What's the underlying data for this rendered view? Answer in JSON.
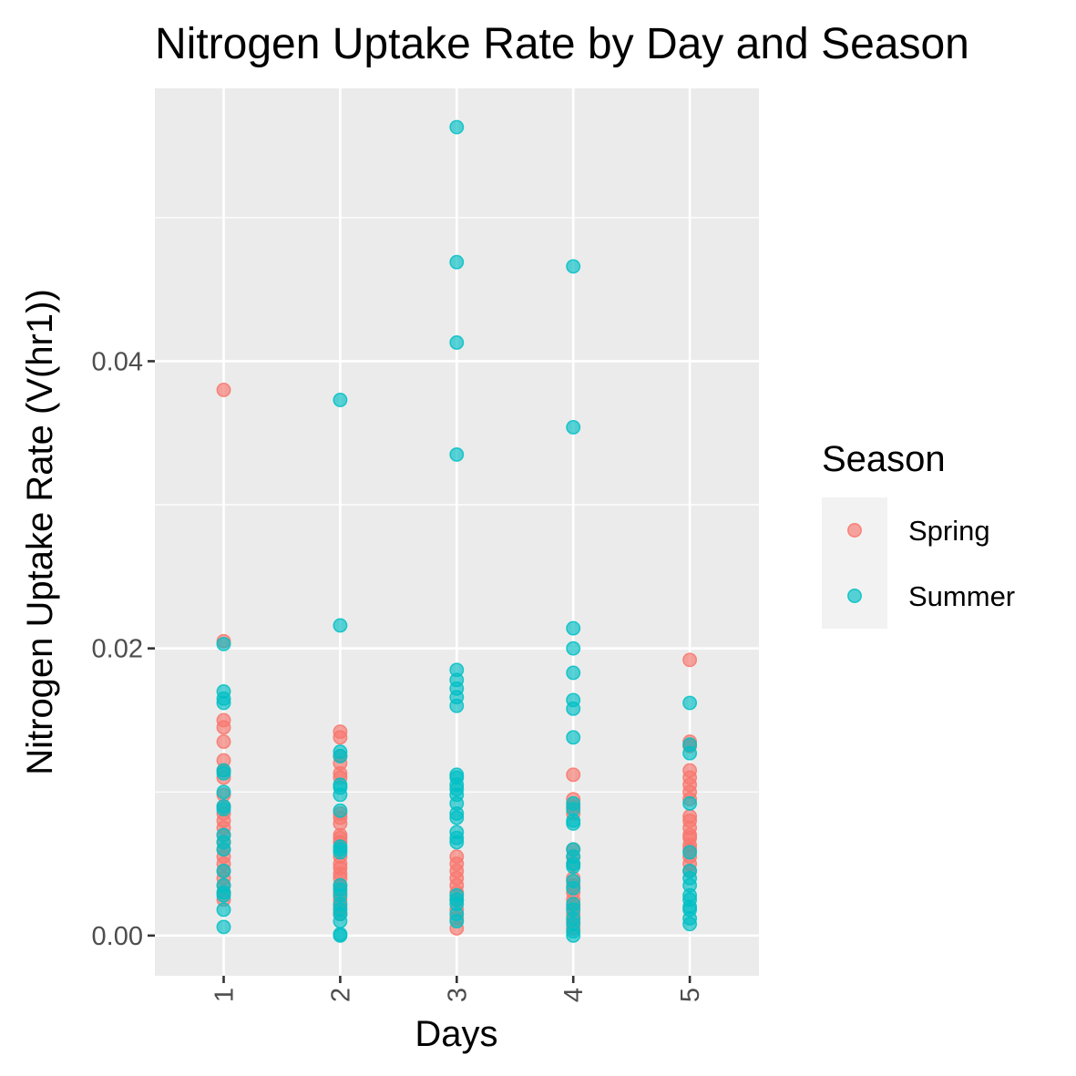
{
  "chart_data": {
    "type": "scatter",
    "title": "Nitrogen Uptake Rate by Day and Season",
    "xlabel": "Days",
    "ylabel": "Nitrogen Uptake Rate (V(hr1))",
    "categories": [
      "1",
      "2",
      "3",
      "4",
      "5"
    ],
    "yticks": [
      "0.00",
      "0.02",
      "0.04"
    ],
    "ylim": [
      -0.0028,
      0.059
    ],
    "grid": true,
    "legend": {
      "title": "Season",
      "position": "right",
      "entries": [
        "Spring",
        "Summer"
      ]
    },
    "series": [
      {
        "name": "Spring",
        "color": "#F8766D",
        "points": [
          [
            1,
            0.038
          ],
          [
            1,
            0.0205
          ],
          [
            1,
            0.015
          ],
          [
            1,
            0.0145
          ],
          [
            1,
            0.0135
          ],
          [
            1,
            0.0122
          ],
          [
            1,
            0.0115
          ],
          [
            1,
            0.011
          ],
          [
            1,
            0.0098
          ],
          [
            1,
            0.009
          ],
          [
            1,
            0.0085
          ],
          [
            1,
            0.008
          ],
          [
            1,
            0.0075
          ],
          [
            1,
            0.007
          ],
          [
            1,
            0.0065
          ],
          [
            1,
            0.006
          ],
          [
            1,
            0.0055
          ],
          [
            1,
            0.005
          ],
          [
            1,
            0.0045
          ],
          [
            1,
            0.004
          ],
          [
            1,
            0.0035
          ],
          [
            1,
            0.003
          ],
          [
            1,
            0.0025
          ],
          [
            2,
            0.0142
          ],
          [
            2,
            0.0138
          ],
          [
            2,
            0.0125
          ],
          [
            2,
            0.012
          ],
          [
            2,
            0.0113
          ],
          [
            2,
            0.011
          ],
          [
            2,
            0.0085
          ],
          [
            2,
            0.0082
          ],
          [
            2,
            0.0078
          ],
          [
            2,
            0.007
          ],
          [
            2,
            0.0068
          ],
          [
            2,
            0.0065
          ],
          [
            2,
            0.0055
          ],
          [
            2,
            0.005
          ],
          [
            2,
            0.0047
          ],
          [
            2,
            0.0043
          ],
          [
            2,
            0.004
          ],
          [
            2,
            0.0035
          ],
          [
            2,
            0.003
          ],
          [
            2,
            0.0025
          ],
          [
            2,
            0.002
          ],
          [
            2,
            0.0015
          ],
          [
            3,
            0.0055
          ],
          [
            3,
            0.005
          ],
          [
            3,
            0.0045
          ],
          [
            3,
            0.004
          ],
          [
            3,
            0.0035
          ],
          [
            3,
            0.003
          ],
          [
            3,
            0.0025
          ],
          [
            3,
            0.0018
          ],
          [
            3,
            0.0012
          ],
          [
            3,
            0.0005
          ],
          [
            4,
            0.0112
          ],
          [
            4,
            0.0095
          ],
          [
            4,
            0.009
          ],
          [
            4,
            0.0085
          ],
          [
            4,
            0.006
          ],
          [
            4,
            0.0055
          ],
          [
            4,
            0.005
          ],
          [
            4,
            0.004
          ],
          [
            4,
            0.0035
          ],
          [
            4,
            0.003
          ],
          [
            4,
            0.0025
          ],
          [
            4,
            0.002
          ],
          [
            4,
            0.0015
          ],
          [
            4,
            0.001
          ],
          [
            4,
            0.0005
          ],
          [
            5,
            0.0192
          ],
          [
            5,
            0.0135
          ],
          [
            5,
            0.0132
          ],
          [
            5,
            0.0115
          ],
          [
            5,
            0.011
          ],
          [
            5,
            0.0105
          ],
          [
            5,
            0.01
          ],
          [
            5,
            0.0095
          ],
          [
            5,
            0.0083
          ],
          [
            5,
            0.008
          ],
          [
            5,
            0.0075
          ],
          [
            5,
            0.007
          ],
          [
            5,
            0.0068
          ],
          [
            5,
            0.0063
          ],
          [
            5,
            0.006
          ],
          [
            5,
            0.0055
          ],
          [
            5,
            0.005
          ],
          [
            5,
            0.0045
          ]
        ]
      },
      {
        "name": "Summer",
        "color": "#00BFC4",
        "points": [
          [
            1,
            0.0203
          ],
          [
            1,
            0.017
          ],
          [
            1,
            0.0165
          ],
          [
            1,
            0.0162
          ],
          [
            1,
            0.0115
          ],
          [
            1,
            0.0113
          ],
          [
            1,
            0.01
          ],
          [
            1,
            0.009
          ],
          [
            1,
            0.0088
          ],
          [
            1,
            0.007
          ],
          [
            1,
            0.0065
          ],
          [
            1,
            0.006
          ],
          [
            1,
            0.0045
          ],
          [
            1,
            0.0035
          ],
          [
            1,
            0.003
          ],
          [
            1,
            0.0028
          ],
          [
            1,
            0.0018
          ],
          [
            1,
            0.0006
          ],
          [
            2,
            0.0373
          ],
          [
            2,
            0.0216
          ],
          [
            2,
            0.0128
          ],
          [
            2,
            0.0125
          ],
          [
            2,
            0.0105
          ],
          [
            2,
            0.0103
          ],
          [
            2,
            0.0098
          ],
          [
            2,
            0.0087
          ],
          [
            2,
            0.0062
          ],
          [
            2,
            0.006
          ],
          [
            2,
            0.0058
          ],
          [
            2,
            0.0035
          ],
          [
            2,
            0.0032
          ],
          [
            2,
            0.0028
          ],
          [
            2,
            0.0022
          ],
          [
            2,
            0.0018
          ],
          [
            2,
            0.0015
          ],
          [
            2,
            0.001
          ],
          [
            2,
            0.0001
          ],
          [
            2,
            0.0
          ],
          [
            3,
            0.0563
          ],
          [
            3,
            0.0469
          ],
          [
            3,
            0.0413
          ],
          [
            3,
            0.0335
          ],
          [
            3,
            0.0185
          ],
          [
            3,
            0.0178
          ],
          [
            3,
            0.0172
          ],
          [
            3,
            0.0166
          ],
          [
            3,
            0.016
          ],
          [
            3,
            0.0112
          ],
          [
            3,
            0.011
          ],
          [
            3,
            0.0105
          ],
          [
            3,
            0.0102
          ],
          [
            3,
            0.0098
          ],
          [
            3,
            0.0092
          ],
          [
            3,
            0.0085
          ],
          [
            3,
            0.0082
          ],
          [
            3,
            0.0072
          ],
          [
            3,
            0.0068
          ],
          [
            3,
            0.0065
          ],
          [
            3,
            0.0028
          ],
          [
            3,
            0.0025
          ],
          [
            3,
            0.0022
          ],
          [
            3,
            0.0015
          ],
          [
            3,
            0.001
          ],
          [
            4,
            0.0466
          ],
          [
            4,
            0.0354
          ],
          [
            4,
            0.0214
          ],
          [
            4,
            0.02
          ],
          [
            4,
            0.0183
          ],
          [
            4,
            0.0164
          ],
          [
            4,
            0.0158
          ],
          [
            4,
            0.0138
          ],
          [
            4,
            0.0092
          ],
          [
            4,
            0.0088
          ],
          [
            4,
            0.008
          ],
          [
            4,
            0.0078
          ],
          [
            4,
            0.006
          ],
          [
            4,
            0.0055
          ],
          [
            4,
            0.005
          ],
          [
            4,
            0.0048
          ],
          [
            4,
            0.0038
          ],
          [
            4,
            0.0033
          ],
          [
            4,
            0.0022
          ],
          [
            4,
            0.0018
          ],
          [
            4,
            0.0012
          ],
          [
            4,
            0.0008
          ],
          [
            4,
            0.0003
          ],
          [
            4,
            0.0
          ],
          [
            5,
            0.0162
          ],
          [
            5,
            0.0133
          ],
          [
            5,
            0.0127
          ],
          [
            5,
            0.0092
          ],
          [
            5,
            0.0058
          ],
          [
            5,
            0.0045
          ],
          [
            5,
            0.004
          ],
          [
            5,
            0.0035
          ],
          [
            5,
            0.0028
          ],
          [
            5,
            0.0025
          ],
          [
            5,
            0.002
          ],
          [
            5,
            0.0018
          ],
          [
            5,
            0.0012
          ],
          [
            5,
            0.0008
          ]
        ]
      }
    ]
  }
}
